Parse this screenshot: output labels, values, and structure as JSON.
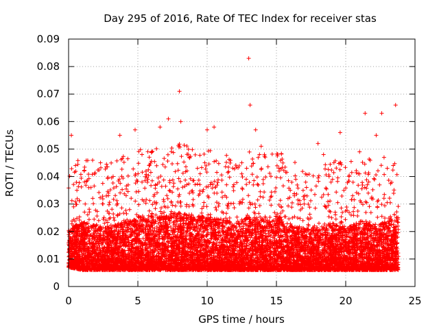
{
  "chart_data": {
    "type": "scatter",
    "title": "Day 295 of 2016, Rate Of TEC Index for receiver stas",
    "xlabel": "GPS time / hours",
    "ylabel": "ROTI / TECUs",
    "xlim": [
      0,
      25
    ],
    "ylim": [
      0,
      0.09
    ],
    "xticks": [
      "0",
      "5",
      "10",
      "15",
      "20",
      "25"
    ],
    "yticks": [
      "0",
      "0.01",
      "0.02",
      "0.03",
      "0.04",
      "0.05",
      "0.06",
      "0.07",
      "0.08",
      "0.09"
    ],
    "grid": true,
    "marker": "+",
    "color": "#ff0000",
    "series": [
      {
        "name": "ROTI",
        "x": [
          0.1,
          0.2,
          0.3,
          0.5,
          0.6,
          0.8,
          1.0,
          1.2,
          1.5,
          1.8,
          2.0,
          2.3,
          2.6,
          3.0,
          3.3,
          3.7,
          4.0,
          4.4,
          4.8,
          5.0,
          5.3,
          5.7,
          6.0,
          6.3,
          6.6,
          6.9,
          7.2,
          7.6,
          8.0,
          8.1,
          8.5,
          9.0,
          9.3,
          9.8,
          10.0,
          10.5,
          11.0,
          11.4,
          12.0,
          12.5,
          13.0,
          13.1,
          13.5,
          13.9,
          14.3,
          14.8,
          15.2,
          15.6,
          16.0,
          16.5,
          17.0,
          17.5,
          18.0,
          18.4,
          18.8,
          19.2,
          19.6,
          20.0,
          20.5,
          21.0,
          21.4,
          21.8,
          22.2,
          22.6,
          23.0,
          23.4,
          23.6,
          23.7
        ],
        "y": [
          0.012,
          0.055,
          0.018,
          0.044,
          0.035,
          0.02,
          0.015,
          0.03,
          0.011,
          0.022,
          0.013,
          0.045,
          0.017,
          0.025,
          0.012,
          0.055,
          0.009,
          0.028,
          0.057,
          0.014,
          0.038,
          0.019,
          0.049,
          0.026,
          0.058,
          0.021,
          0.061,
          0.015,
          0.071,
          0.06,
          0.024,
          0.018,
          0.043,
          0.013,
          0.057,
          0.058,
          0.016,
          0.037,
          0.019,
          0.045,
          0.083,
          0.066,
          0.057,
          0.051,
          0.018,
          0.024,
          0.042,
          0.014,
          0.035,
          0.02,
          0.03,
          0.013,
          0.052,
          0.048,
          0.04,
          0.022,
          0.056,
          0.017,
          0.033,
          0.049,
          0.063,
          0.021,
          0.055,
          0.063,
          0.043,
          0.016,
          0.066,
          0.025
        ],
        "band_x": [
          0,
          1,
          2,
          3,
          4,
          5,
          6,
          7,
          8,
          9,
          10,
          11,
          12,
          13,
          14,
          15,
          16,
          17,
          18,
          19,
          20,
          21,
          22,
          23,
          23.8
        ],
        "band_lower": [
          0.007,
          0.006,
          0.006,
          0.006,
          0.006,
          0.006,
          0.006,
          0.006,
          0.006,
          0.006,
          0.006,
          0.006,
          0.006,
          0.006,
          0.006,
          0.006,
          0.006,
          0.006,
          0.006,
          0.006,
          0.006,
          0.006,
          0.006,
          0.006,
          0.006
        ],
        "band_upper": [
          0.025,
          0.03,
          0.028,
          0.027,
          0.03,
          0.032,
          0.032,
          0.033,
          0.034,
          0.033,
          0.032,
          0.031,
          0.029,
          0.032,
          0.031,
          0.033,
          0.028,
          0.026,
          0.027,
          0.029,
          0.026,
          0.03,
          0.028,
          0.03,
          0.032
        ]
      }
    ]
  }
}
